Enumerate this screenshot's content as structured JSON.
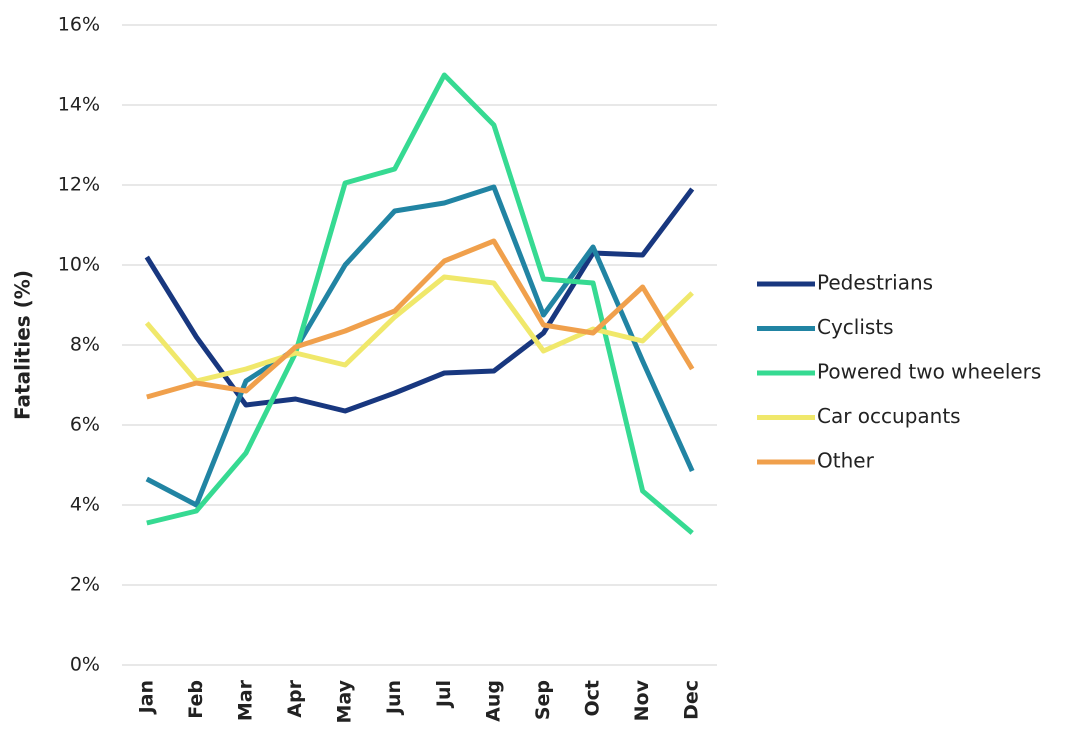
{
  "chart_data": {
    "type": "line",
    "y_label": "Fatalities (%)",
    "categories": [
      "Jan",
      "Feb",
      "Mar",
      "Apr",
      "May",
      "Jun",
      "Jul",
      "Aug",
      "Sep",
      "Oct",
      "Nov",
      "Dec"
    ],
    "series": [
      {
        "name": "Pedestrians",
        "color": "#18377f",
        "values": [
          10.2,
          8.2,
          6.5,
          6.65,
          6.35,
          6.8,
          7.3,
          7.35,
          8.3,
          10.3,
          10.25,
          11.9
        ]
      },
      {
        "name": "Cyclists",
        "color": "#2184a3",
        "values": [
          4.65,
          4.0,
          7.1,
          7.9,
          10.0,
          11.35,
          11.55,
          11.95,
          8.75,
          10.45,
          7.6,
          4.85
        ]
      },
      {
        "name": "Powered two wheelers",
        "color": "#36da92",
        "values": [
          3.55,
          3.85,
          5.3,
          7.8,
          12.05,
          12.4,
          14.75,
          13.5,
          9.65,
          9.55,
          4.35,
          3.3
        ]
      },
      {
        "name": "Car occupants",
        "color": "#f0e86b",
        "values": [
          8.55,
          7.1,
          7.4,
          7.8,
          7.5,
          8.7,
          9.7,
          9.55,
          7.85,
          8.4,
          8.1,
          9.3
        ]
      },
      {
        "name": "Other",
        "color": "#f0a04c",
        "values": [
          6.7,
          7.05,
          6.85,
          7.95,
          8.35,
          8.85,
          10.1,
          10.6,
          8.5,
          8.3,
          9.45,
          7.4
        ]
      }
    ],
    "ylim": [
      0,
      16
    ],
    "yticks": [
      {
        "value": 0,
        "label": "0%"
      },
      {
        "value": 2,
        "label": "2%"
      },
      {
        "value": 4,
        "label": "4%"
      },
      {
        "value": 6,
        "label": "6%"
      },
      {
        "value": 8,
        "label": "8%"
      },
      {
        "value": 10,
        "label": "10%"
      },
      {
        "value": 12,
        "label": "12%"
      },
      {
        "value": 14,
        "label": "14%"
      },
      {
        "value": 16,
        "label": "16%"
      }
    ],
    "grid": true,
    "legend": "right"
  }
}
